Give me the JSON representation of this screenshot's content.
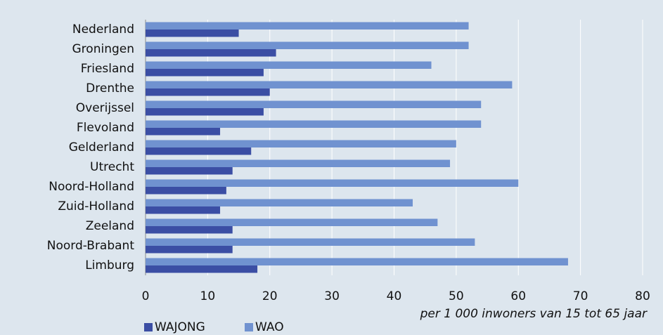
{
  "chart_data": {
    "type": "hbar",
    "xlabel": "per 1 000 inwoners van 15 tot 65 jaar",
    "categories": [
      "Nederland",
      "Groningen",
      "Friesland",
      "Drenthe",
      "Overijssel",
      "Flevoland",
      "Gelderland",
      "Utrecht",
      "Noord-Holland",
      "Zuid-Holland",
      "Zeeland",
      "Noord-Brabant",
      "Limburg"
    ],
    "series": [
      {
        "name": "WAJONG",
        "color": "#3b4ea4",
        "values": [
          15,
          21,
          19,
          20,
          19,
          12,
          17,
          14,
          13,
          12,
          14,
          14,
          18
        ]
      },
      {
        "name": "WAO",
        "color": "#7092d0",
        "values": [
          52,
          52,
          46,
          59,
          54,
          54,
          50,
          49,
          60,
          43,
          47,
          53,
          68
        ]
      }
    ],
    "xlim": [
      0,
      80
    ],
    "xticks": [
      0,
      10,
      20,
      30,
      40,
      50,
      60,
      70,
      80
    ],
    "grid": true,
    "legend": "bottom-left"
  }
}
